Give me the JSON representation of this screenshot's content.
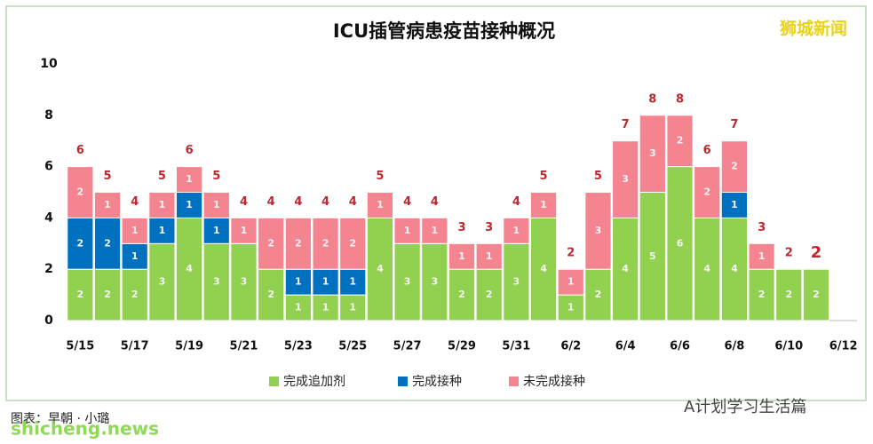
{
  "chart_data": {
    "type": "stacked_bar",
    "title": "ICU插管病患疫苗接种概况",
    "categories": [
      "5/15",
      null,
      "5/17",
      null,
      "5/19",
      null,
      "5/21",
      null,
      "5/23",
      null,
      "5/25",
      null,
      "5/27",
      null,
      "5/29",
      null,
      "5/31",
      null,
      "6/2",
      null,
      "6/4",
      null,
      "6/6",
      null,
      "6/8",
      null,
      "6/10",
      null,
      "6/12"
    ],
    "series": [
      {
        "name": "完成追加剂",
        "color": "#92d050",
        "values": [
          2,
          2,
          2,
          3,
          4,
          3,
          3,
          2,
          1,
          1,
          1,
          4,
          3,
          3,
          2,
          2,
          3,
          4,
          1,
          2,
          4,
          5,
          6,
          4,
          4,
          2,
          2,
          2,
          null
        ]
      },
      {
        "name": "完成接种",
        "color": "#0070c0",
        "values": [
          2,
          2,
          1,
          1,
          1,
          1,
          0,
          0,
          1,
          1,
          1,
          0,
          0,
          0,
          0,
          0,
          0,
          0,
          0,
          0,
          0,
          0,
          0,
          0,
          1,
          0,
          0,
          0,
          null
        ]
      },
      {
        "name": "未完成接种",
        "color": "#f4848f",
        "values": [
          2,
          1,
          1,
          1,
          1,
          1,
          1,
          2,
          2,
          2,
          2,
          1,
          1,
          1,
          1,
          1,
          1,
          1,
          1,
          3,
          3,
          3,
          2,
          2,
          2,
          1,
          0,
          0,
          null
        ]
      }
    ],
    "totals": [
      6,
      5,
      4,
      5,
      6,
      5,
      4,
      4,
      4,
      4,
      4,
      5,
      4,
      4,
      3,
      3,
      4,
      5,
      2,
      5,
      7,
      8,
      8,
      6,
      7,
      3,
      2,
      2,
      null
    ],
    "ylim": [
      0,
      10
    ],
    "yticks": [
      0,
      2,
      4,
      6,
      8,
      10
    ],
    "grid": false,
    "legend": "bottom"
  },
  "watermark": "狮城新闻",
  "credit": "图表：早朝 · 小璐",
  "site": "shicheng.news",
  "account": "A计划学习生活篇"
}
